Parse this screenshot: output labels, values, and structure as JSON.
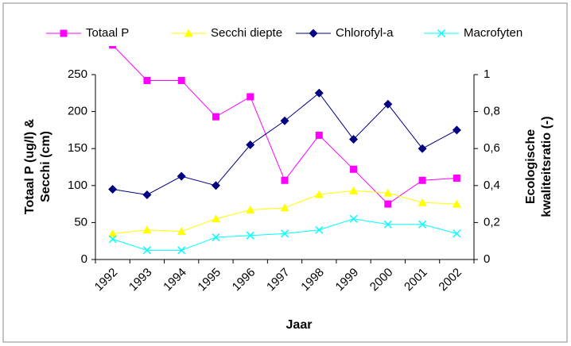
{
  "chart_data": {
    "type": "line",
    "legend": "top",
    "categories": [
      "1992",
      "1993",
      "1994",
      "1995",
      "1996",
      "1997",
      "1998",
      "1999",
      "2000",
      "2001",
      "2002"
    ],
    "xlabel": "Jaar",
    "ylabel": [
      "Totaal P (ug/l) &",
      "Secchi (cm)"
    ],
    "y2label": [
      "Ecologische",
      "kwaliteitsratio (-)"
    ],
    "ylim": [
      0,
      250
    ],
    "yticks": [
      0,
      50,
      100,
      150,
      200,
      250
    ],
    "y2lim": [
      0,
      1
    ],
    "y2ticks": [
      0,
      {
        "value": 0.2,
        "label": "0,2"
      },
      {
        "value": 0.4,
        "label": "0,4"
      },
      {
        "value": 0.6,
        "label": "0,6"
      },
      {
        "value": 0.8,
        "label": "0,8"
      },
      1
    ],
    "series": [
      {
        "name": "Totaal P",
        "color": "#ff00ff",
        "marker": "square",
        "values": [
          290,
          242,
          242,
          193,
          220,
          107,
          168,
          122,
          75,
          107,
          110
        ]
      },
      {
        "name": "Secchi diepte",
        "color": "#ffff00",
        "marker": "triangle",
        "values": [
          35,
          40,
          38,
          55,
          67,
          70,
          88,
          93,
          90,
          77,
          75
        ]
      },
      {
        "name": "Chlorofyl-a",
        "color": "#000080",
        "marker": "diamond",
        "axis": "y2",
        "values": [
          0.38,
          0.35,
          0.45,
          0.4,
          0.62,
          0.75,
          0.9,
          0.65,
          0.84,
          0.6,
          0.7
        ]
      },
      {
        "name": "Macrofyten",
        "color": "#00ffff",
        "marker": "x",
        "axis": "y2",
        "values": [
          0.11,
          0.05,
          0.05,
          0.12,
          0.13,
          0.14,
          0.16,
          0.22,
          0.19,
          0.19,
          0.14
        ]
      }
    ]
  }
}
